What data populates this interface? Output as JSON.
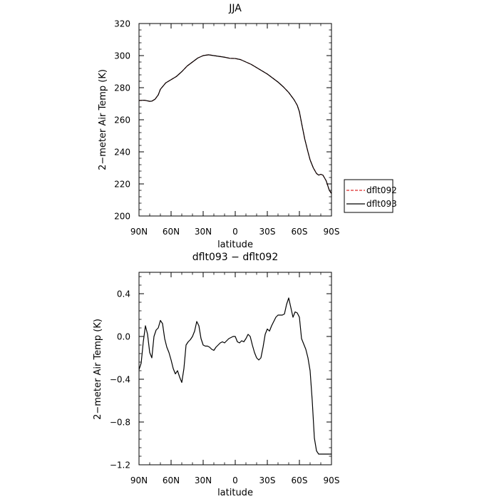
{
  "chart_data": [
    {
      "type": "line",
      "title": "JJA",
      "xlabel": "latitude",
      "ylabel": "2−meter Air Temp (K)",
      "xlim": [
        90,
        -90
      ],
      "ylim": [
        200,
        320
      ],
      "xticks": [
        90,
        60,
        30,
        0,
        -30,
        -60,
        -90
      ],
      "xtick_labels": [
        "90N",
        "60N",
        "30N",
        "0",
        "30S",
        "60S",
        "90S"
      ],
      "yticks": [
        200,
        220,
        240,
        260,
        280,
        300,
        320
      ],
      "ytick_labels": [
        "200",
        "220",
        "240",
        "260",
        "280",
        "300",
        "320"
      ],
      "legend": {
        "placement": "right, outside plot",
        "entries": [
          "dflt092",
          "dflt093"
        ]
      },
      "series": [
        {
          "name": "dflt092",
          "style": "dashed",
          "color": "#dd2a2a",
          "x": [
            90,
            85,
            80,
            78,
            75,
            72,
            70,
            65,
            60,
            55,
            50,
            45,
            40,
            35,
            30,
            25,
            20,
            15,
            10,
            5,
            0,
            -5,
            -10,
            -15,
            -20,
            -25,
            -30,
            -35,
            -40,
            -45,
            -50,
            -55,
            -58,
            -60,
            -62,
            -65,
            -68,
            -70,
            -73,
            -76,
            -78,
            -80,
            -82,
            -85,
            -88,
            -90
          ],
          "y": [
            272,
            272.2,
            271.5,
            271.6,
            272.8,
            275.5,
            279,
            283,
            285,
            287,
            290,
            293.5,
            296,
            298.5,
            300,
            300.5,
            300,
            299.5,
            299,
            298.3,
            298.2,
            297.5,
            296,
            294.5,
            292.5,
            290.5,
            288.5,
            286,
            283.5,
            280.5,
            277,
            272.5,
            269,
            265,
            258,
            248,
            240,
            235,
            230,
            226.5,
            225.5,
            226,
            225.5,
            222,
            216,
            214
          ]
        },
        {
          "name": "dflt093",
          "style": "solid",
          "color": "#000000",
          "x": [
            90,
            85,
            80,
            78,
            75,
            72,
            70,
            65,
            60,
            55,
            50,
            45,
            40,
            35,
            30,
            25,
            20,
            15,
            10,
            5,
            0,
            -5,
            -10,
            -15,
            -20,
            -25,
            -30,
            -35,
            -40,
            -45,
            -50,
            -55,
            -58,
            -60,
            -62,
            -65,
            -68,
            -70,
            -73,
            -76,
            -78,
            -80,
            -82,
            -85,
            -88,
            -90
          ],
          "y": [
            272,
            272.2,
            271.5,
            271.6,
            272.8,
            275.5,
            279,
            283,
            285,
            287,
            290,
            293.5,
            296,
            298.5,
            300,
            300.5,
            300,
            299.5,
            299,
            298.3,
            298.2,
            297.5,
            296,
            294.5,
            292.5,
            290.5,
            288.5,
            286,
            283.5,
            280.5,
            277,
            272.5,
            269,
            265,
            258,
            248,
            240,
            235,
            230,
            226.5,
            225.5,
            226,
            225.5,
            222,
            216,
            214
          ]
        }
      ],
      "grid": false
    },
    {
      "type": "line",
      "title": "dflt093 − dflt092",
      "xlabel": "latitude",
      "ylabel": "2−meter Air Temp (K)",
      "xlim": [
        90,
        -90
      ],
      "ylim": [
        -1.2,
        0.6
      ],
      "xticks": [
        90,
        60,
        30,
        0,
        -30,
        -60,
        -90
      ],
      "xtick_labels": [
        "90N",
        "60N",
        "30N",
        "0",
        "30S",
        "60S",
        "90S"
      ],
      "yticks": [
        -1.2,
        -0.8,
        -0.4,
        0.0,
        0.4
      ],
      "ytick_labels": [
        "−1.2",
        "−0.8",
        "−0.4",
        "0.0",
        "0.4"
      ],
      "series": [
        {
          "style": "solid",
          "color": "#000000",
          "x": [
            90,
            88,
            86,
            84,
            82,
            80,
            78,
            76,
            74,
            72,
            70,
            68,
            66,
            64,
            62,
            60,
            58,
            56,
            54,
            52,
            50,
            48,
            46,
            44,
            42,
            40,
            38,
            36,
            34,
            32,
            30,
            28,
            26,
            24,
            22,
            20,
            18,
            16,
            14,
            12,
            10,
            8,
            6,
            4,
            2,
            0,
            -2,
            -4,
            -6,
            -8,
            -10,
            -12,
            -14,
            -16,
            -18,
            -20,
            -22,
            -24,
            -26,
            -28,
            -30,
            -32,
            -34,
            -36,
            -38,
            -40,
            -42,
            -44,
            -46,
            -48,
            -50,
            -52,
            -54,
            -56,
            -58,
            -60,
            -62,
            -64,
            -66,
            -68,
            -70,
            -72,
            -74,
            -76,
            -78,
            -80,
            -82,
            -84,
            -86,
            -88,
            -90
          ],
          "y": [
            -0.31,
            -0.25,
            -0.05,
            0.1,
            0.02,
            -0.15,
            -0.2,
            0.0,
            0.06,
            0.08,
            0.15,
            0.12,
            -0.02,
            -0.1,
            -0.15,
            -0.22,
            -0.3,
            -0.35,
            -0.32,
            -0.38,
            -0.43,
            -0.3,
            -0.08,
            -0.05,
            -0.03,
            0.0,
            0.05,
            0.14,
            0.1,
            -0.02,
            -0.08,
            -0.09,
            -0.09,
            -0.1,
            -0.12,
            -0.13,
            -0.1,
            -0.08,
            -0.06,
            -0.05,
            -0.06,
            -0.04,
            -0.02,
            -0.01,
            0.0,
            0.0,
            -0.05,
            -0.06,
            -0.04,
            -0.05,
            -0.02,
            0.02,
            0.0,
            -0.08,
            -0.15,
            -0.2,
            -0.22,
            -0.2,
            -0.1,
            0.02,
            0.07,
            0.05,
            0.1,
            0.14,
            0.18,
            0.2,
            0.2,
            0.2,
            0.21,
            0.3,
            0.36,
            0.27,
            0.18,
            0.23,
            0.22,
            0.18,
            -0.02,
            -0.07,
            -0.12,
            -0.2,
            -0.32,
            -0.6,
            -0.95,
            -1.07,
            -1.1,
            -1.1,
            -1.1,
            -1.1,
            -1.1,
            -1.1,
            -1.1
          ]
        }
      ],
      "grid": false
    }
  ]
}
